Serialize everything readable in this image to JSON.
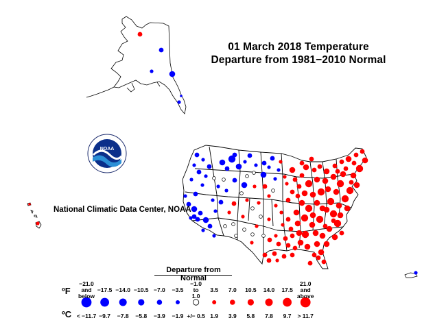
{
  "title": {
    "line1": "01 March 2018 Temperature",
    "line2": "Departure from 1981−2010 Normal"
  },
  "credit": "National Climatic Data Center, NOAA",
  "logo": {
    "text": "NOAA",
    "ring_text": "NATIONAL OCEANIC AND ATMOSPHERIC ADMINISTRATION · U.S. DEPARTMENT OF COMMERCE"
  },
  "legend": {
    "title": "Departure from Normal",
    "f_unit": "ºF",
    "c_unit": "ºC",
    "classes": [
      {
        "f": "−21.0\nand\nbelow",
        "c": "< −11.7",
        "color": "#0000ff",
        "size": 5
      },
      {
        "f": "−17.5",
        "c": "−9.7",
        "color": "#0000ff",
        "size": 4
      },
      {
        "f": "−14.0",
        "c": "−7.8",
        "color": "#0000ff",
        "size": 3
      },
      {
        "f": "−10.5",
        "c": "−5.8",
        "color": "#0000ff",
        "size": 2
      },
      {
        "f": "−7.0",
        "c": "−3.9",
        "color": "#0000ff",
        "size": 1
      },
      {
        "f": "−3.5",
        "c": "−1.9",
        "color": "#0000ff",
        "size": 0
      },
      {
        "f": "−1.0\nto\n1.0",
        "c": "+/− 0.5",
        "color": "#ffffff",
        "size": -1
      },
      {
        "f": "3.5",
        "c": "1.9",
        "color": "#ff0000",
        "size": 0
      },
      {
        "f": "7.0",
        "c": "3.9",
        "color": "#ff0000",
        "size": 1
      },
      {
        "f": "10.5",
        "c": "5.8",
        "color": "#ff0000",
        "size": 2
      },
      {
        "f": "14.0",
        "c": "7.8",
        "color": "#ff0000",
        "size": 3
      },
      {
        "f": "17.5",
        "c": "9.7",
        "color": "#ff0000",
        "size": 4
      },
      {
        "f": "21.0\nand\nabove",
        "c": "> 11.7",
        "color": "#ff0000",
        "size": 5
      }
    ]
  },
  "colors": {
    "cold": "#0000ff",
    "warm": "#ff0000",
    "near_normal_fill": "#ffffff",
    "outline": "#000000"
  }
}
